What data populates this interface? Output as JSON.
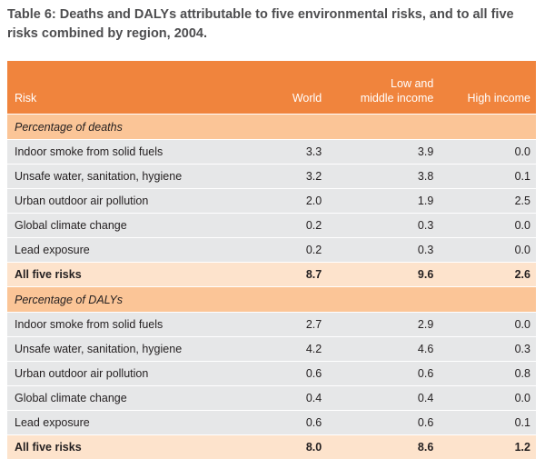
{
  "caption": "Table 6: Deaths and DALYs attributable to five environmental risks, and to all five risks combined by region, 2004.",
  "headers": {
    "risk": "Risk",
    "world": "World",
    "lmi_line1": "Low and",
    "lmi_line2": "middle income",
    "high": "High income"
  },
  "deaths": {
    "title": "Percentage of deaths",
    "rows": [
      {
        "risk": "Indoor smoke from solid fuels",
        "world": "3.3",
        "lmi": "3.9",
        "high": "0.0"
      },
      {
        "risk": "Unsafe water, sanitation, hygiene",
        "world": "3.2",
        "lmi": "3.8",
        "high": "0.1"
      },
      {
        "risk": "Urban outdoor air pollution",
        "world": "2.0",
        "lmi": "1.9",
        "high": "2.5"
      },
      {
        "risk": "Global climate change",
        "world": "0.2",
        "lmi": "0.3",
        "high": "0.0"
      },
      {
        "risk": "Lead exposure",
        "world": "0.2",
        "lmi": "0.3",
        "high": "0.0"
      }
    ],
    "total": {
      "risk": "All five risks",
      "world": "8.7",
      "lmi": "9.6",
      "high": "2.6"
    }
  },
  "dalys": {
    "title": "Percentage of DALYs",
    "rows": [
      {
        "risk": "Indoor smoke from solid fuels",
        "world": "2.7",
        "lmi": "2.9",
        "high": "0.0"
      },
      {
        "risk": "Unsafe water, sanitation, hygiene",
        "world": "4.2",
        "lmi": "4.6",
        "high": "0.3"
      },
      {
        "risk": "Urban outdoor air pollution",
        "world": "0.6",
        "lmi": "0.6",
        "high": "0.8"
      },
      {
        "risk": "Global climate change",
        "world": "0.4",
        "lmi": "0.4",
        "high": "0.0"
      },
      {
        "risk": "Lead exposure",
        "world": "0.6",
        "lmi": "0.6",
        "high": "0.1"
      }
    ],
    "total": {
      "risk": "All five risks",
      "world": "8.0",
      "lmi": "8.6",
      "high": "1.2"
    }
  }
}
